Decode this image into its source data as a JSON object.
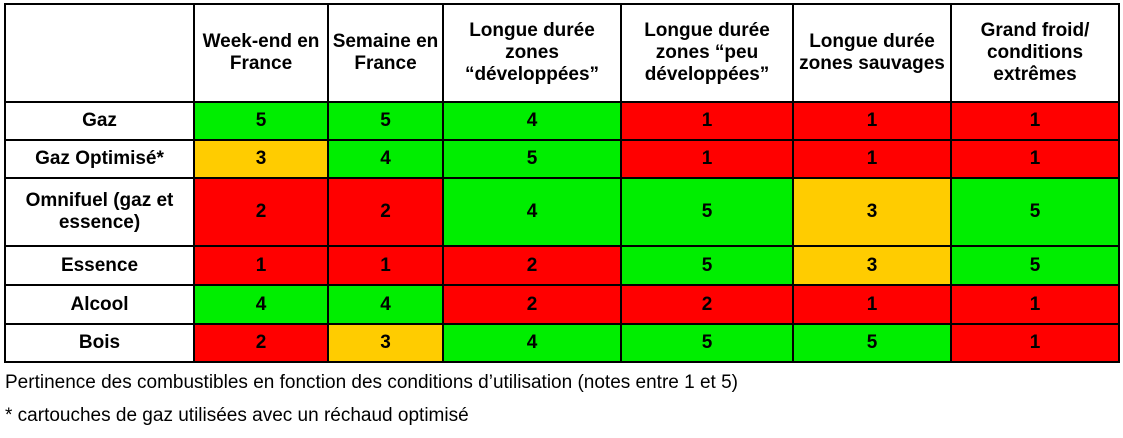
{
  "table": {
    "columns": [
      "Week-end en France",
      "Semaine en France",
      "Longue durée zones “développées”",
      "Longue durée zones “peu développées”",
      "Longue durée zones sauvages",
      "Grand froid/ conditions extrêmes"
    ],
    "rows": [
      {
        "label": "Gaz",
        "values": [
          "5",
          "5",
          "4",
          "1",
          "1",
          "1"
        ],
        "colors": [
          "green",
          "green",
          "green",
          "red",
          "red",
          "red"
        ]
      },
      {
        "label": "Gaz Optimisé*",
        "values": [
          "3",
          "4",
          "5",
          "1",
          "1",
          "1"
        ],
        "colors": [
          "orange",
          "green",
          "green",
          "red",
          "red",
          "red"
        ]
      },
      {
        "label": "Omnifuel (gaz et essence)",
        "values": [
          "2",
          "2",
          "4",
          "5",
          "3",
          "5"
        ],
        "colors": [
          "red",
          "red",
          "green",
          "green",
          "orange",
          "green"
        ]
      },
      {
        "label": "Essence",
        "values": [
          "1",
          "1",
          "2",
          "5",
          "3",
          "5"
        ],
        "colors": [
          "red",
          "red",
          "red",
          "green",
          "orange",
          "green"
        ]
      },
      {
        "label": "Alcool",
        "values": [
          "4",
          "4",
          "2",
          "2",
          "1",
          "1"
        ],
        "colors": [
          "green",
          "green",
          "red",
          "red",
          "red",
          "red"
        ]
      },
      {
        "label": "Bois",
        "values": [
          "2",
          "3",
          "4",
          "5",
          "5",
          "1"
        ],
        "colors": [
          "red",
          "orange",
          "green",
          "green",
          "green",
          "red"
        ]
      }
    ],
    "palette": {
      "green": "#00ee00",
      "red": "#ff0000",
      "orange": "#ffcc00"
    }
  },
  "captions": {
    "line1": "Pertinence des combustibles en fonction des conditions d’utilisation (notes entre 1 et 5)",
    "line2": "* cartouches de gaz utilisées avec un réchaud optimisé"
  }
}
